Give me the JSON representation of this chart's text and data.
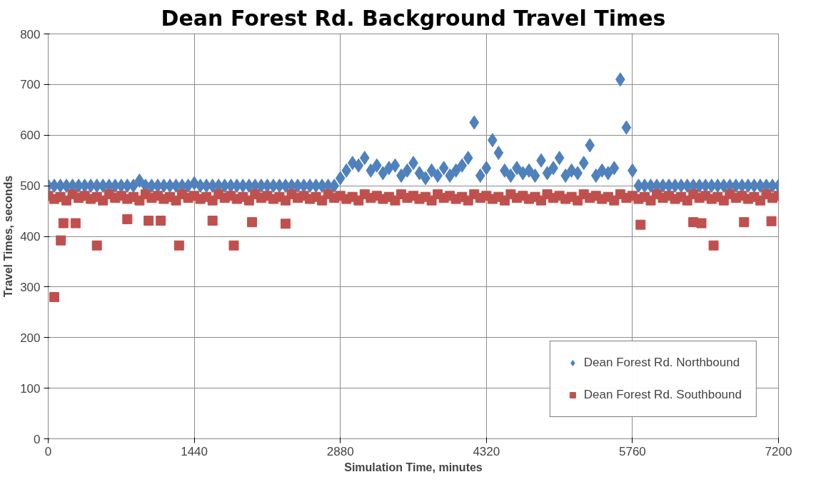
{
  "chart_data": {
    "type": "scatter",
    "title": "Dean Forest Rd. Background Travel Times",
    "xlabel": "Simulation Time, minutes",
    "ylabel": "Travel Times, seconds",
    "xlim": [
      0,
      7200
    ],
    "xticks": [
      0,
      1440,
      2880,
      4320,
      5760,
      7200
    ],
    "ylim": [
      0,
      800
    ],
    "yticks": [
      0,
      100,
      200,
      300,
      400,
      500,
      600,
      700,
      800
    ],
    "grid": true,
    "legend": "bottom right",
    "series": [
      {
        "name": "Dean Forest Rd. Northbound",
        "color": "#4f81bd",
        "marker": "diamond",
        "x": [
          0,
          60,
          120,
          180,
          240,
          300,
          360,
          420,
          480,
          540,
          600,
          660,
          720,
          780,
          840,
          900,
          960,
          1020,
          1080,
          1140,
          1200,
          1260,
          1320,
          1380,
          1440,
          1500,
          1560,
          1620,
          1680,
          1740,
          1800,
          1860,
          1920,
          1980,
          2040,
          2100,
          2160,
          2220,
          2280,
          2340,
          2400,
          2460,
          2520,
          2580,
          2640,
          2700,
          2760,
          2820,
          2880,
          2940,
          3000,
          3060,
          3120,
          3180,
          3240,
          3300,
          3360,
          3420,
          3480,
          3540,
          3600,
          3660,
          3720,
          3780,
          3840,
          3900,
          3960,
          4020,
          4080,
          4140,
          4200,
          4260,
          4320,
          4380,
          4440,
          4500,
          4560,
          4620,
          4680,
          4740,
          4800,
          4860,
          4920,
          4980,
          5040,
          5100,
          5160,
          5220,
          5280,
          5340,
          5400,
          5460,
          5520,
          5580,
          5640,
          5700,
          5760,
          5820,
          5880,
          5940,
          6000,
          6060,
          6120,
          6180,
          6240,
          6300,
          6360,
          6420,
          6480,
          6540,
          6600,
          6660,
          6720,
          6780,
          6840,
          6900,
          6960,
          7020,
          7080,
          7140,
          7200
        ],
        "values": [
          500,
          500,
          500,
          500,
          500,
          500,
          500,
          500,
          500,
          500,
          500,
          500,
          500,
          500,
          500,
          510,
          500,
          500,
          500,
          500,
          500,
          500,
          500,
          500,
          505,
          500,
          500,
          500,
          500,
          500,
          500,
          500,
          500,
          500,
          500,
          500,
          500,
          500,
          500,
          500,
          500,
          500,
          500,
          500,
          500,
          500,
          500,
          500,
          515,
          530,
          545,
          540,
          555,
          530,
          540,
          525,
          535,
          540,
          520,
          530,
          545,
          525,
          515,
          530,
          520,
          535,
          520,
          530,
          540,
          555,
          625,
          520,
          535,
          590,
          565,
          530,
          520,
          535,
          525,
          530,
          520,
          550,
          525,
          535,
          555,
          520,
          530,
          525,
          545,
          580,
          520,
          530,
          525,
          535,
          710,
          615,
          530,
          500,
          500,
          500,
          500,
          500,
          500,
          500,
          500,
          500,
          500,
          500,
          500,
          500,
          500,
          500,
          500,
          500,
          500,
          500,
          500,
          500,
          500,
          500,
          500
        ]
      },
      {
        "name": "Dean Forest Rd. Southbound",
        "color": "#c0504d",
        "marker": "square",
        "x": [
          0,
          60,
          120,
          180,
          240,
          300,
          360,
          420,
          480,
          540,
          600,
          660,
          720,
          780,
          840,
          900,
          960,
          1020,
          1080,
          1140,
          1200,
          1260,
          1320,
          1380,
          1440,
          1500,
          1560,
          1620,
          1680,
          1740,
          1800,
          1860,
          1920,
          1980,
          2040,
          2100,
          2160,
          2220,
          2280,
          2340,
          2400,
          2460,
          2520,
          2580,
          2640,
          2700,
          2760,
          2820,
          2880,
          2940,
          3000,
          3060,
          3120,
          3180,
          3240,
          3300,
          3360,
          3420,
          3480,
          3540,
          3600,
          3660,
          3720,
          3780,
          3840,
          3900,
          3960,
          4020,
          4080,
          4140,
          4200,
          4260,
          4320,
          4380,
          4440,
          4500,
          4560,
          4620,
          4680,
          4740,
          4800,
          4860,
          4920,
          4980,
          5040,
          5100,
          5160,
          5220,
          5280,
          5340,
          5400,
          5460,
          5520,
          5580,
          5640,
          5700,
          5760,
          5820,
          5880,
          5940,
          6000,
          6060,
          6120,
          6180,
          6240,
          6300,
          6360,
          6420,
          6480,
          6540,
          6600,
          6660,
          6720,
          6780,
          6840,
          6900,
          6960,
          7020,
          7080,
          7140,
          7200,
          60,
          125,
          150,
          270,
          480,
          780,
          990,
          1110,
          1290,
          1620,
          1830,
          2010,
          2340,
          5840,
          6360,
          6440,
          6560,
          6860,
          7130
        ],
        "values": [
          480,
          474,
          478,
          471,
          483,
          476,
          480,
          474,
          478,
          471,
          483,
          476,
          480,
          474,
          478,
          471,
          483,
          476,
          480,
          474,
          478,
          471,
          483,
          476,
          480,
          474,
          478,
          471,
          483,
          476,
          480,
          474,
          478,
          471,
          483,
          476,
          480,
          474,
          478,
          471,
          483,
          476,
          480,
          474,
          478,
          471,
          483,
          476,
          480,
          474,
          478,
          471,
          483,
          476,
          480,
          474,
          478,
          471,
          483,
          476,
          480,
          474,
          478,
          471,
          483,
          476,
          480,
          474,
          478,
          471,
          483,
          476,
          480,
          474,
          478,
          471,
          483,
          476,
          480,
          474,
          478,
          471,
          483,
          476,
          480,
          474,
          478,
          471,
          483,
          476,
          480,
          474,
          478,
          471,
          483,
          476,
          480,
          474,
          478,
          471,
          483,
          476,
          480,
          474,
          478,
          471,
          483,
          476,
          480,
          474,
          478,
          471,
          483,
          476,
          480,
          474,
          478,
          471,
          483,
          476,
          480,
          280,
          392,
          426,
          426,
          382,
          434,
          431,
          431,
          382,
          431,
          382,
          428,
          425,
          423,
          428,
          426,
          382,
          428,
          430
        ]
      }
    ]
  }
}
